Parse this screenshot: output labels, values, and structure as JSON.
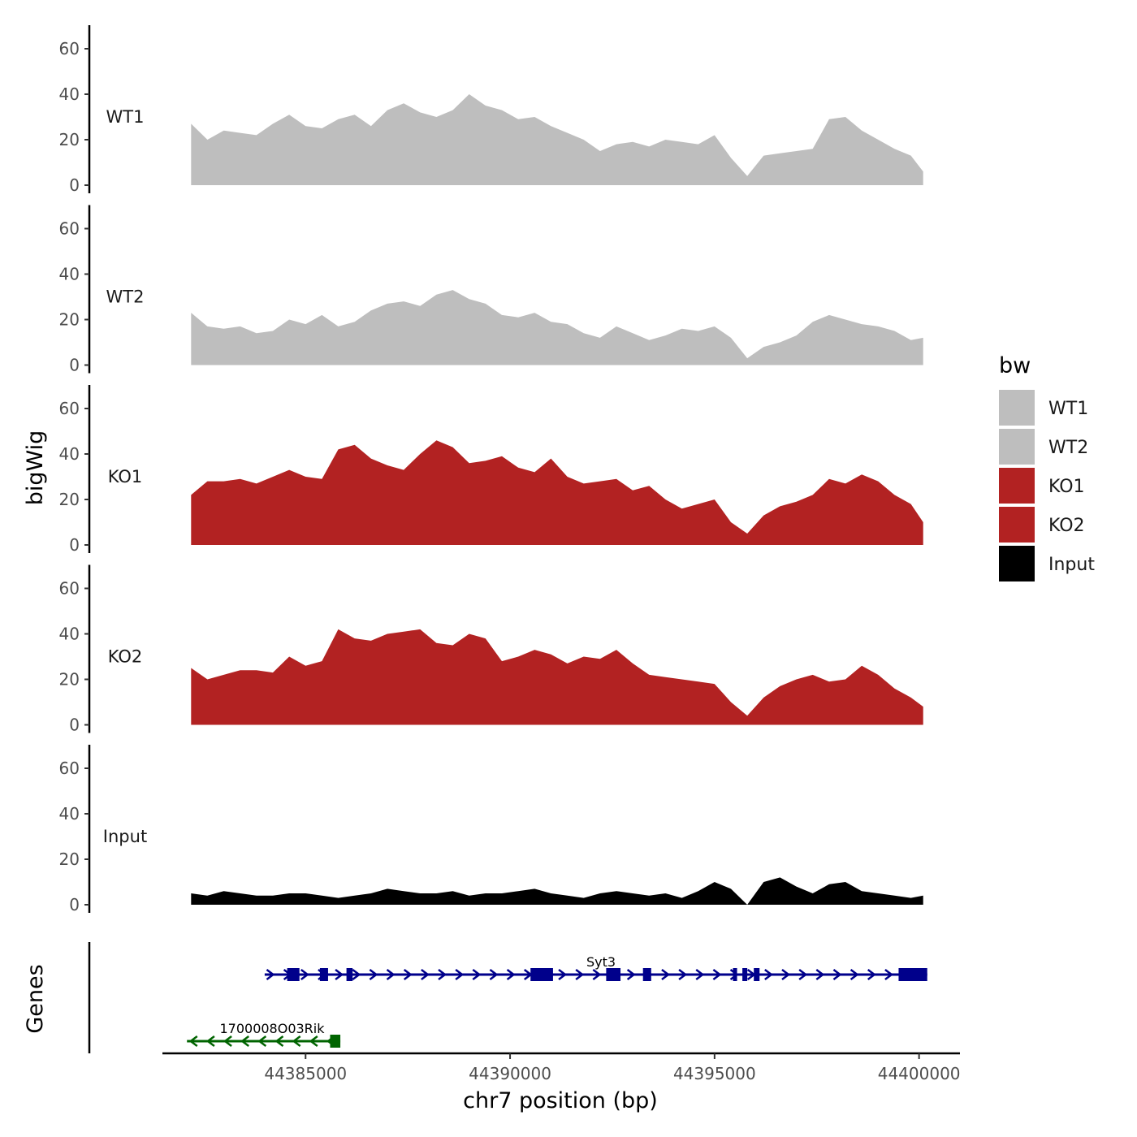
{
  "chart_data": {
    "type": "area",
    "title": "",
    "xlabel": "chr7 position (bp)",
    "ylabel": "bigWig",
    "genes_label": "Genes",
    "xlim": [
      44381500,
      44401000
    ],
    "ylim": [
      0,
      65
    ],
    "y_ticks": [
      0,
      20,
      40,
      60
    ],
    "x_ticks": [
      44385000,
      44390000,
      44395000,
      44400000
    ],
    "x_tick_labels": [
      "44385000",
      "44390000",
      "44395000",
      "44400000"
    ],
    "legend": {
      "title": "bw",
      "position": "right",
      "entries": [
        {
          "name": "WT1",
          "color": "#bebebe"
        },
        {
          "name": "WT2",
          "color": "#bebebe"
        },
        {
          "name": "KO1",
          "color": "#b22222"
        },
        {
          "name": "KO2",
          "color": "#b22222"
        },
        {
          "name": "Input",
          "color": "#000000"
        }
      ]
    },
    "x": [
      44382200,
      44382600,
      44383000,
      44383400,
      44383800,
      44384200,
      44384600,
      44385000,
      44385400,
      44385800,
      44386200,
      44386600,
      44387000,
      44387400,
      44387800,
      44388200,
      44388600,
      44389000,
      44389400,
      44389800,
      44390200,
      44390600,
      44391000,
      44391400,
      44391800,
      44392200,
      44392600,
      44393000,
      44393400,
      44393800,
      44394200,
      44394600,
      44395000,
      44395400,
      44395800,
      44396200,
      44396600,
      44397000,
      44397400,
      44397800,
      44398200,
      44398600,
      44399000,
      44399400,
      44399800,
      44400100
    ],
    "series": [
      {
        "name": "WT1",
        "color": "#bebebe",
        "values": [
          27,
          20,
          24,
          23,
          22,
          27,
          31,
          26,
          25,
          29,
          31,
          26,
          33,
          36,
          32,
          30,
          33,
          40,
          35,
          33,
          29,
          30,
          26,
          23,
          20,
          15,
          18,
          19,
          17,
          20,
          19,
          18,
          22,
          12,
          4,
          13,
          14,
          15,
          16,
          29,
          30,
          24,
          20,
          16,
          13,
          6
        ]
      },
      {
        "name": "WT2",
        "color": "#bebebe",
        "values": [
          23,
          17,
          16,
          17,
          14,
          15,
          20,
          18,
          22,
          17,
          19,
          24,
          27,
          28,
          26,
          31,
          33,
          29,
          27,
          22,
          21,
          23,
          19,
          18,
          14,
          12,
          17,
          14,
          11,
          13,
          16,
          15,
          17,
          12,
          3,
          8,
          10,
          13,
          19,
          22,
          20,
          18,
          17,
          15,
          11,
          12
        ]
      },
      {
        "name": "KO1",
        "color": "#b22222",
        "values": [
          22,
          28,
          28,
          29,
          27,
          30,
          33,
          30,
          29,
          42,
          44,
          38,
          35,
          33,
          40,
          46,
          43,
          36,
          37,
          39,
          34,
          32,
          38,
          30,
          27,
          28,
          29,
          24,
          26,
          20,
          16,
          18,
          20,
          10,
          5,
          13,
          17,
          19,
          22,
          29,
          27,
          31,
          28,
          22,
          18,
          10
        ]
      },
      {
        "name": "KO2",
        "color": "#b22222",
        "values": [
          25,
          20,
          22,
          24,
          24,
          23,
          30,
          26,
          28,
          42,
          38,
          37,
          40,
          41,
          42,
          36,
          35,
          40,
          38,
          28,
          30,
          33,
          31,
          27,
          30,
          29,
          33,
          27,
          22,
          21,
          20,
          19,
          18,
          10,
          4,
          12,
          17,
          20,
          22,
          19,
          20,
          26,
          22,
          16,
          12,
          8
        ]
      },
      {
        "name": "Input",
        "color": "#000000",
        "values": [
          5,
          4,
          6,
          5,
          4,
          4,
          5,
          5,
          4,
          3,
          4,
          5,
          7,
          6,
          5,
          5,
          6,
          4,
          5,
          5,
          6,
          7,
          5,
          4,
          3,
          5,
          6,
          5,
          4,
          5,
          3,
          6,
          10,
          7,
          0,
          10,
          12,
          8,
          5,
          9,
          10,
          6,
          5,
          4,
          3,
          4
        ]
      }
    ],
    "genes": [
      {
        "name": "Syt3",
        "strand": "+",
        "color": "#00008b",
        "start": 44384000,
        "end": 44400200,
        "exons": [
          [
            44384550,
            44384850
          ],
          [
            44385350,
            44385550
          ],
          [
            44386000,
            44386150
          ],
          [
            44390500,
            44391050
          ],
          [
            44392350,
            44392700
          ],
          [
            44393250,
            44393450
          ],
          [
            44395450,
            44395550
          ],
          [
            44395680,
            44395800
          ],
          [
            44395960,
            44396100
          ],
          [
            44399500,
            44400200
          ]
        ]
      },
      {
        "name": "1700008O03Rik",
        "strand": "-",
        "color": "#006400",
        "start": 44382100,
        "end": 44385850,
        "exons": [
          [
            44385600,
            44385850
          ]
        ]
      }
    ]
  }
}
